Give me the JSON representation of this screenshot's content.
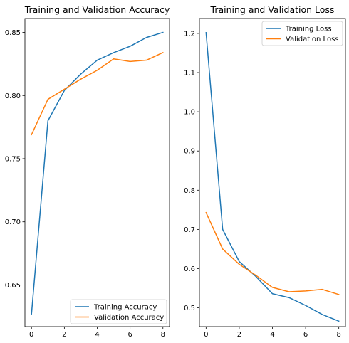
{
  "chart_data": [
    {
      "type": "line",
      "title": "Training and Validation Accuracy",
      "xlabel": "",
      "ylabel": "",
      "xlim": [
        -0.4,
        8.4
      ],
      "ylim": [
        0.617,
        0.861
      ],
      "xticks": [
        0,
        2,
        4,
        6,
        8
      ],
      "yticks": [
        0.65,
        0.7,
        0.75,
        0.8,
        0.85
      ],
      "grid": false,
      "legend": "lower-right",
      "x": [
        0,
        1,
        2,
        3,
        4,
        5,
        6,
        7,
        8
      ],
      "series": [
        {
          "name": "Training Accuracy",
          "color": "#1f77b4",
          "values": [
            0.627,
            0.78,
            0.804,
            0.817,
            0.828,
            0.834,
            0.839,
            0.846,
            0.85
          ]
        },
        {
          "name": "Validation Accuracy",
          "color": "#ff7f0e",
          "values": [
            0.769,
            0.797,
            0.805,
            0.813,
            0.82,
            0.829,
            0.827,
            0.828,
            0.834
          ]
        }
      ]
    },
    {
      "type": "line",
      "title": "Training and Validation Loss",
      "xlabel": "",
      "ylabel": "",
      "xlim": [
        -0.4,
        8.4
      ],
      "ylim": [
        0.452,
        1.238
      ],
      "xticks": [
        0,
        2,
        4,
        6,
        8
      ],
      "yticks": [
        0.5,
        0.6,
        0.7,
        0.8,
        0.9,
        1.0,
        1.1,
        1.2
      ],
      "grid": false,
      "legend": "top-right",
      "x": [
        0,
        1,
        2,
        3,
        4,
        5,
        6,
        7,
        8
      ],
      "series": [
        {
          "name": "Training Loss",
          "color": "#1f77b4",
          "values": [
            1.202,
            0.7,
            0.618,
            0.58,
            0.536,
            0.526,
            0.506,
            0.483,
            0.466
          ]
        },
        {
          "name": "Validation Loss",
          "color": "#ff7f0e",
          "values": [
            0.743,
            0.65,
            0.611,
            0.583,
            0.552,
            0.541,
            0.543,
            0.547,
            0.534
          ]
        }
      ]
    }
  ]
}
